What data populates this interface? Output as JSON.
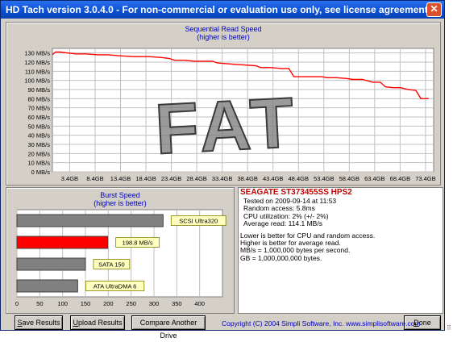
{
  "window": {
    "title": "HD Tach version 3.0.4.0  - For non-commercial or evaluation use only, see license agreement.",
    "close_glyph": "✕"
  },
  "chart_data": [
    {
      "type": "line",
      "title": "Sequential Read Speed",
      "subtitle": "(higher is better)",
      "y_ticks": [
        "0 MB/s",
        "10 MB/s",
        "20 MB/s",
        "30 MB/s",
        "40 MB/s",
        "50 MB/s",
        "60 MB/s",
        "70 MB/s",
        "80 MB/s",
        "90 MB/s",
        "100 MB/s",
        "110 MB/s",
        "120 MB/s",
        "130 MB/s"
      ],
      "x_ticks": [
        "3.4GB",
        "8.4GB",
        "13.4GB",
        "18.4GB",
        "23.4GB",
        "28.4GB",
        "33.4GB",
        "38.4GB",
        "43.4GB",
        "48.4GB",
        "53.4GB",
        "58.4GB",
        "63.4GB",
        "68.4GB",
        "73.4GB"
      ],
      "ylim": [
        0,
        135
      ],
      "xlim": [
        0,
        75
      ],
      "grid": true,
      "color": "#ff0000",
      "x": [
        0,
        0.6,
        1.5,
        3,
        4.5,
        6.5,
        9,
        11,
        13,
        16,
        19,
        21.5,
        23,
        24,
        26,
        28,
        30,
        31.5,
        32.5,
        35,
        37.5,
        40,
        41,
        43,
        45,
        46.5,
        47.5,
        50,
        53,
        54,
        56,
        58,
        59,
        61,
        63,
        64.5,
        65.5,
        67,
        68.5,
        70,
        71.5,
        72.5,
        74
      ],
      "y": [
        128,
        131,
        131,
        130,
        129,
        129,
        128,
        128,
        127,
        126,
        126,
        125,
        124,
        122,
        122,
        121,
        121,
        121,
        119,
        118,
        117,
        116,
        114,
        114,
        113,
        113,
        104,
        104,
        104,
        103,
        103,
        102,
        101,
        101,
        98,
        98,
        93,
        92,
        92,
        90,
        89,
        80,
        80
      ]
    },
    {
      "type": "bar",
      "orientation": "horizontal",
      "title": "Burst Speed",
      "subtitle": "(higher is better)",
      "xlim": [
        0,
        450
      ],
      "x_ticks": [
        "0",
        "50",
        "100",
        "150",
        "200",
        "250",
        "300",
        "350",
        "400"
      ],
      "grid": true,
      "categories": [
        "SCSI Ultra320",
        "198.8 MB/s",
        "SATA 150",
        "ATA UltraDMA 6"
      ],
      "values": [
        320,
        198.8,
        150,
        133
      ],
      "colors": [
        "#808080",
        "#ff0000",
        "#808080",
        "#808080"
      ]
    }
  ],
  "watermark": "FAT",
  "info": {
    "drive": "SEAGATE ST373455SS HPS2",
    "tested": "Tested on 2009-09-14 at 11:53",
    "random_access": "Random access: 5.8ms",
    "cpu": "CPU utilization: 2% (+/- 2%)",
    "avg_read": "Average read: 114.1 MB/s",
    "notes": [
      "Lower is better for CPU and random access.",
      "Higher is better for average read.",
      "MB/s = 1,000,000 bytes per second.",
      "GB = 1,000,000,000 bytes."
    ]
  },
  "buttons": {
    "save": {
      "label": "Save Results",
      "mnemonic": "S",
      "rest": "ave Results"
    },
    "upload": {
      "label": "Upload Results",
      "mnemonic": "U",
      "rest": "pload Results"
    },
    "compare": {
      "label": "Compare Another Drive"
    },
    "done": {
      "label": "Done",
      "mnemonic": "D",
      "rest": "one"
    }
  },
  "copyright": "Copyright (C) 2004 Simpli Software, Inc. www.simplisoftware.com"
}
